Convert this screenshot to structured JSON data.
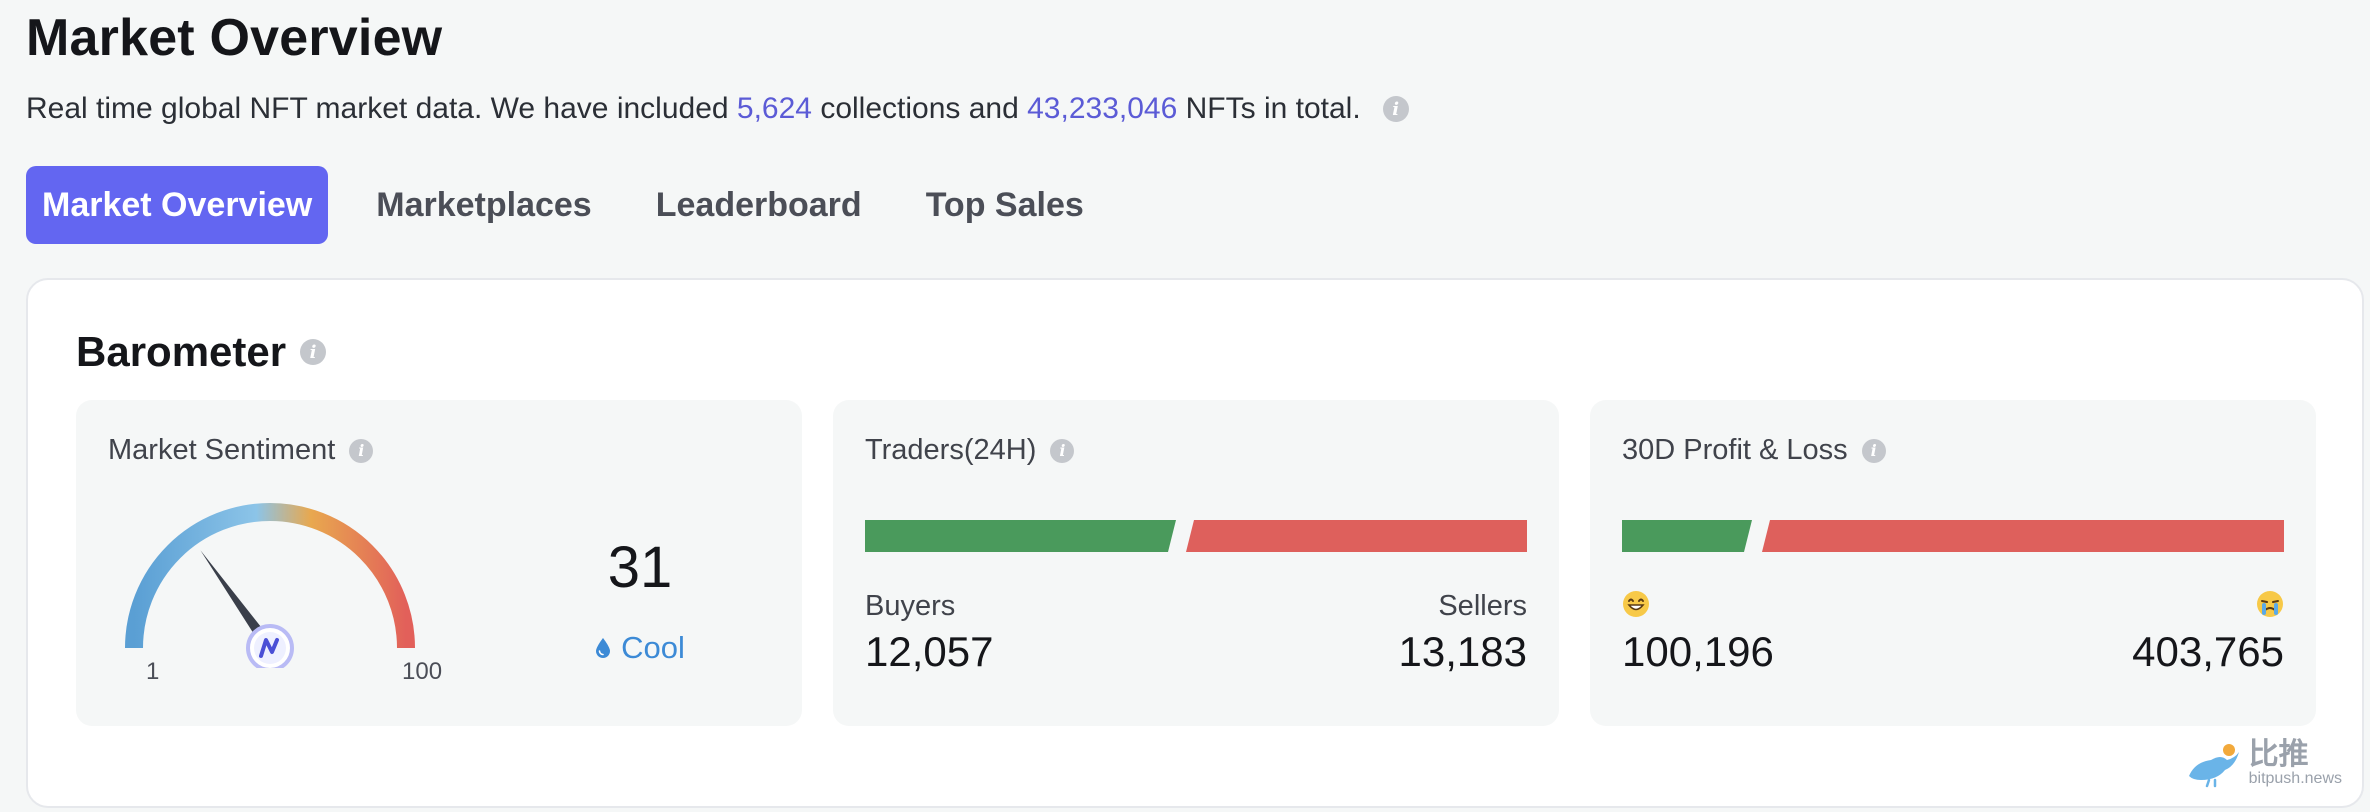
{
  "header": {
    "title": "Market Overview",
    "subtitle_prefix": "Real time global NFT market data. We have included ",
    "collections_count": "5,624",
    "subtitle_mid": " collections and ",
    "nfts_count": "43,233,046",
    "subtitle_suffix": " NFTs in total."
  },
  "tabs": [
    {
      "label": "Market Overview",
      "active": true
    },
    {
      "label": "Marketplaces",
      "active": false
    },
    {
      "label": "Leaderboard",
      "active": false
    },
    {
      "label": "Top Sales",
      "active": false
    }
  ],
  "barometer": {
    "title": "Barometer",
    "sentiment": {
      "label": "Market Sentiment",
      "min_label": "1",
      "max_label": "100",
      "min": 1,
      "max": 100,
      "value": "31",
      "value_num": 31,
      "status": "Cool"
    },
    "traders": {
      "label": "Traders(24H)",
      "left_label": "Buyers",
      "left_value": "12,057",
      "left_num": 12057,
      "right_label": "Sellers",
      "right_value": "13,183",
      "right_num": 13183
    },
    "pnl": {
      "label": "30D Profit & Loss",
      "left_value": "100,196",
      "left_num": 100196,
      "right_value": "403,765",
      "right_num": 403765
    }
  },
  "colors": {
    "accent": "#6366f1",
    "link_number": "#5b5bd6",
    "buy_green": "#4a9a5c",
    "sell_red": "#de605c",
    "cool_blue": "#3c8ad6"
  },
  "watermark": {
    "cn": "比推",
    "url": "bitpush.news"
  }
}
